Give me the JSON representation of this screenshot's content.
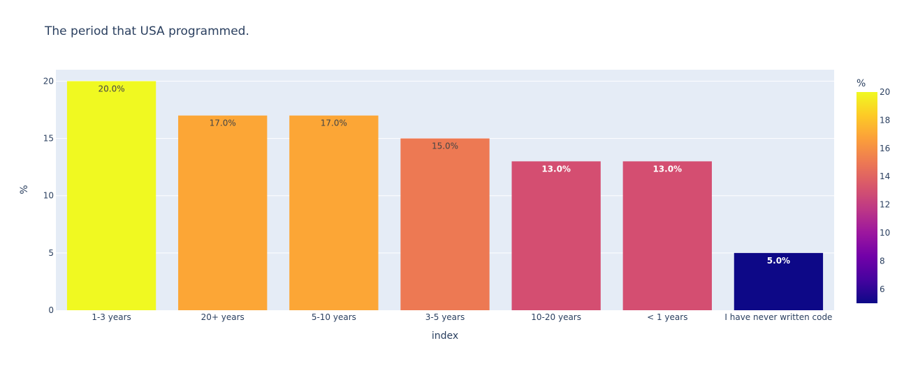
{
  "chart_data": {
    "type": "bar",
    "title": "The period that USA programmed.",
    "xlabel": "index",
    "ylabel": "%",
    "categories": [
      "1-3 years",
      "20+ years",
      "5-10 years",
      "3-5 years",
      "10-20 years",
      "< 1 years",
      "I have never written code"
    ],
    "values": [
      20,
      17,
      17,
      15,
      13,
      13,
      5
    ],
    "data_labels": [
      "20.0%",
      "17.0%",
      "17.0%",
      "15.0%",
      "13.0%",
      "13.0%",
      "5.0%"
    ],
    "ylim": [
      0,
      21
    ],
    "y_ticks": [
      "0",
      "5",
      "10",
      "15",
      "20"
    ],
    "grid": true,
    "bar_colors": [
      "#f0f921",
      "#fca636",
      "#fca636",
      "#ed7953",
      "#d44e71",
      "#d44e71",
      "#0d0887"
    ],
    "plot_background": "#e5ecf6",
    "colorbar": {
      "title": "%",
      "range": [
        5,
        20
      ],
      "ticks": [
        "6",
        "8",
        "10",
        "12",
        "14",
        "16",
        "18",
        "20"
      ],
      "colorscale": [
        "#0d0887",
        "#46039f",
        "#7201a8",
        "#9c179e",
        "#bd3786",
        "#d8576b",
        "#ed7953",
        "#fb9f3a",
        "#fdca26",
        "#f0f921"
      ]
    }
  }
}
